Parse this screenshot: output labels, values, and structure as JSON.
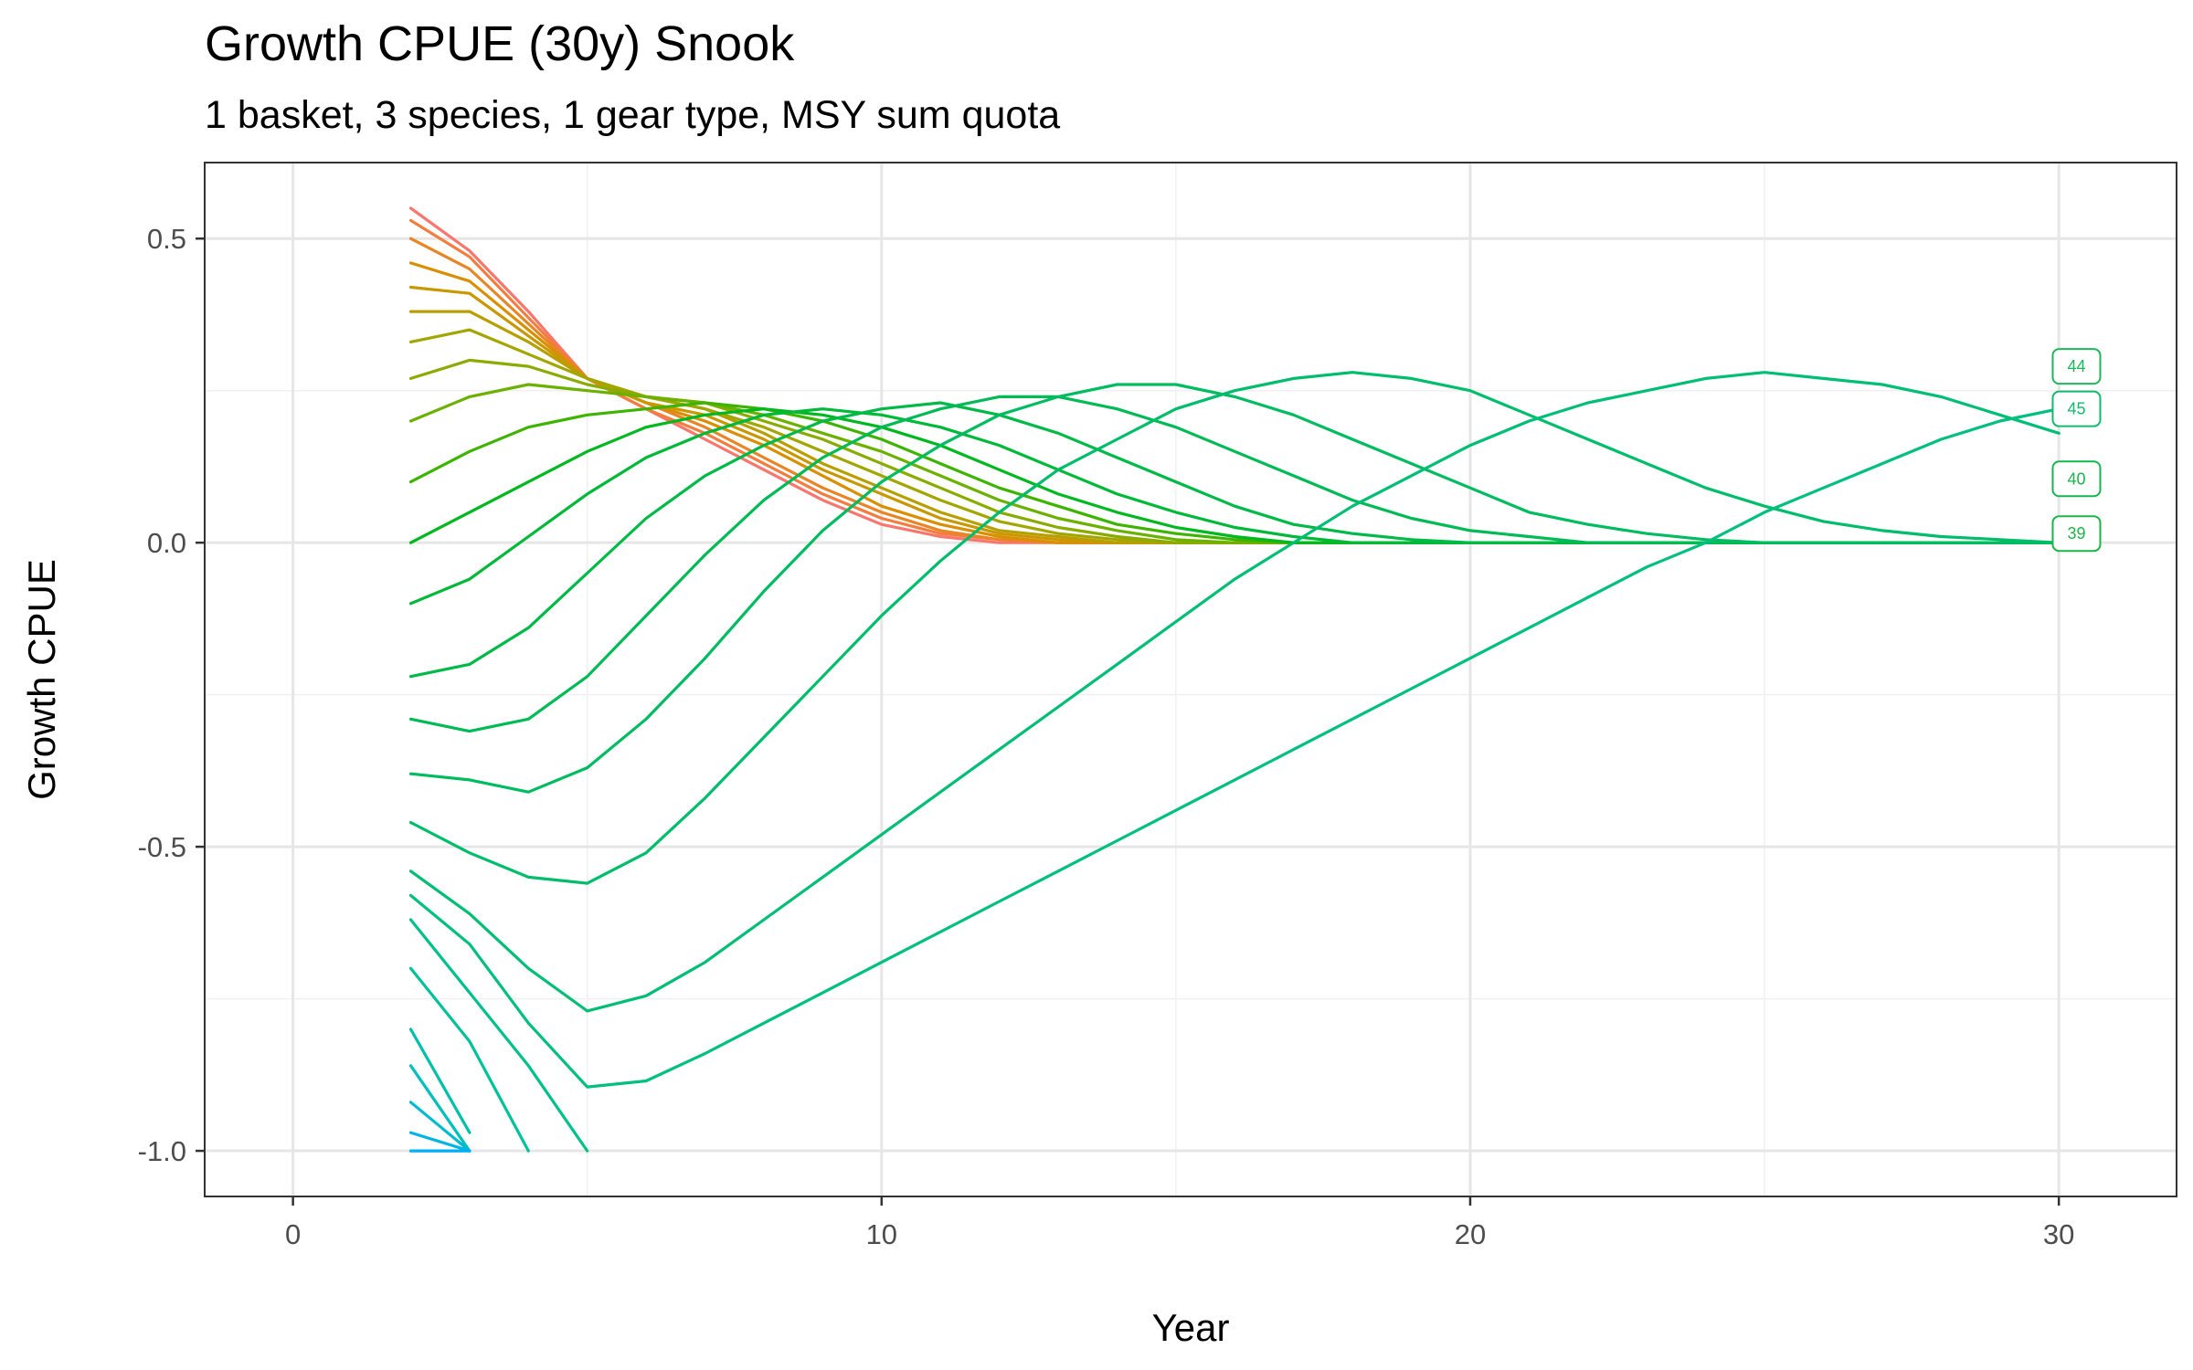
{
  "chart_data": {
    "type": "line",
    "title": "Growth CPUE (30y) Snook",
    "subtitle": "1 basket, 3 species, 1 gear type, MSY sum quota",
    "xlabel": "Year",
    "ylabel": "Growth CPUE",
    "xlim": [
      -1.5,
      32
    ],
    "ylim": [
      -1.075,
      0.625
    ],
    "x_ticks": [
      0,
      10,
      20,
      30
    ],
    "y_ticks": [
      0.5,
      0.0,
      -0.5,
      -1.0
    ],
    "x_tick_labels": [
      "0",
      "10",
      "20",
      "30"
    ],
    "y_tick_labels": [
      "0.5",
      "0.0",
      "-0.5",
      "-1.0"
    ],
    "grid": true,
    "legend": "none",
    "end_labels": [
      {
        "text": "44",
        "x": 30.3,
        "y": 0.29,
        "color": "#1db85a"
      },
      {
        "text": "45",
        "x": 30.3,
        "y": 0.22,
        "color": "#10bb6e"
      },
      {
        "text": "40",
        "x": 30.3,
        "y": 0.105,
        "color": "#17b64f"
      },
      {
        "text": "39",
        "x": 30.3,
        "y": 0.015,
        "color": "#1cb648"
      }
    ],
    "series_count": 80,
    "series_note_x_start": 2,
    "series_x": [
      2,
      3,
      4,
      5,
      6,
      7,
      8,
      9,
      10,
      11,
      12,
      13,
      14,
      15,
      16,
      17,
      18,
      19,
      20,
      21,
      22,
      23,
      24,
      25,
      26,
      27,
      28,
      29,
      30
    ],
    "series": [
      {
        "values": [
          0.55,
          0.48,
          0.38,
          0.27,
          0.22,
          0.17,
          0.12,
          0.07,
          0.03,
          0.01,
          0.0,
          0.0,
          0.0,
          0.0,
          0.0,
          0.0,
          0.0,
          0.0,
          0.0,
          0.0,
          0.0,
          0.0,
          0.0,
          0.0,
          0.0,
          0.0,
          0.0,
          0.0,
          0.0
        ],
        "color": "#f8766d"
      },
      {
        "values": [
          0.53,
          0.47,
          0.37,
          0.27,
          0.22,
          0.18,
          0.13,
          0.08,
          0.04,
          0.015,
          0.005,
          0.0,
          0.0,
          0.0,
          0.0,
          0.0,
          0.0,
          0.0,
          0.0,
          0.0,
          0.0,
          0.0,
          0.0,
          0.0,
          0.0,
          0.0,
          0.0,
          0.0,
          0.0
        ],
        "color": "#f27d3e"
      },
      {
        "values": [
          0.5,
          0.45,
          0.36,
          0.27,
          0.23,
          0.19,
          0.14,
          0.09,
          0.05,
          0.02,
          0.005,
          0.0,
          0.0,
          0.0,
          0.0,
          0.0,
          0.0,
          0.0,
          0.0,
          0.0,
          0.0,
          0.0,
          0.0,
          0.0,
          0.0,
          0.0,
          0.0,
          0.0,
          0.0
        ],
        "color": "#e88526"
      },
      {
        "values": [
          0.46,
          0.43,
          0.35,
          0.27,
          0.23,
          0.2,
          0.16,
          0.11,
          0.06,
          0.03,
          0.01,
          0.0,
          0.0,
          0.0,
          0.0,
          0.0,
          0.0,
          0.0,
          0.0,
          0.0,
          0.0,
          0.0,
          0.0,
          0.0,
          0.0,
          0.0,
          0.0,
          0.0,
          0.0
        ],
        "color": "#da8f00"
      },
      {
        "values": [
          0.42,
          0.41,
          0.34,
          0.27,
          0.23,
          0.21,
          0.17,
          0.12,
          0.08,
          0.04,
          0.015,
          0.005,
          0.0,
          0.0,
          0.0,
          0.0,
          0.0,
          0.0,
          0.0,
          0.0,
          0.0,
          0.0,
          0.0,
          0.0,
          0.0,
          0.0,
          0.0,
          0.0,
          0.0
        ],
        "color": "#c99800"
      },
      {
        "values": [
          0.38,
          0.38,
          0.33,
          0.27,
          0.24,
          0.22,
          0.18,
          0.13,
          0.09,
          0.05,
          0.02,
          0.01,
          0.0,
          0.0,
          0.0,
          0.0,
          0.0,
          0.0,
          0.0,
          0.0,
          0.0,
          0.0,
          0.0,
          0.0,
          0.0,
          0.0,
          0.0,
          0.0,
          0.0
        ],
        "color": "#b79f00"
      },
      {
        "values": [
          0.33,
          0.35,
          0.31,
          0.27,
          0.24,
          0.22,
          0.19,
          0.15,
          0.11,
          0.07,
          0.035,
          0.015,
          0.005,
          0.0,
          0.0,
          0.0,
          0.0,
          0.0,
          0.0,
          0.0,
          0.0,
          0.0,
          0.0,
          0.0,
          0.0,
          0.0,
          0.0,
          0.0,
          0.0
        ],
        "color": "#a3a500"
      },
      {
        "values": [
          0.27,
          0.3,
          0.29,
          0.26,
          0.24,
          0.23,
          0.2,
          0.17,
          0.13,
          0.09,
          0.05,
          0.025,
          0.01,
          0.0,
          0.0,
          0.0,
          0.0,
          0.0,
          0.0,
          0.0,
          0.0,
          0.0,
          0.0,
          0.0,
          0.0,
          0.0,
          0.0,
          0.0,
          0.0
        ],
        "color": "#8aab00"
      },
      {
        "values": [
          0.2,
          0.24,
          0.26,
          0.25,
          0.24,
          0.23,
          0.21,
          0.18,
          0.15,
          0.11,
          0.07,
          0.04,
          0.02,
          0.005,
          0.0,
          0.0,
          0.0,
          0.0,
          0.0,
          0.0,
          0.0,
          0.0,
          0.0,
          0.0,
          0.0,
          0.0,
          0.0,
          0.0,
          0.0
        ],
        "color": "#6bb100"
      },
      {
        "values": [
          0.1,
          0.15,
          0.19,
          0.21,
          0.22,
          0.23,
          0.22,
          0.2,
          0.17,
          0.13,
          0.09,
          0.06,
          0.03,
          0.015,
          0.005,
          0.0,
          0.0,
          0.0,
          0.0,
          0.0,
          0.0,
          0.0,
          0.0,
          0.0,
          0.0,
          0.0,
          0.0,
          0.0,
          0.0
        ],
        "color": "#3db500"
      },
      {
        "values": [
          0.0,
          0.05,
          0.1,
          0.15,
          0.19,
          0.21,
          0.22,
          0.21,
          0.19,
          0.16,
          0.12,
          0.08,
          0.05,
          0.025,
          0.01,
          0.0,
          0.0,
          0.0,
          0.0,
          0.0,
          0.0,
          0.0,
          0.0,
          0.0,
          0.0,
          0.0,
          0.0,
          0.0,
          0.0
        ],
        "color": "#00b81f"
      },
      {
        "values": [
          -0.1,
          -0.06,
          0.01,
          0.08,
          0.14,
          0.18,
          0.21,
          0.22,
          0.21,
          0.19,
          0.16,
          0.12,
          0.08,
          0.05,
          0.025,
          0.01,
          0.0,
          0.0,
          0.0,
          0.0,
          0.0,
          0.0,
          0.0,
          0.0,
          0.0,
          0.0,
          0.0,
          0.0,
          0.0
        ],
        "color": "#00b938"
      },
      {
        "values": [
          -0.22,
          -0.2,
          -0.14,
          -0.05,
          0.04,
          0.11,
          0.16,
          0.2,
          0.22,
          0.23,
          0.21,
          0.18,
          0.14,
          0.1,
          0.06,
          0.03,
          0.015,
          0.005,
          0.0,
          0.0,
          0.0,
          0.0,
          0.0,
          0.0,
          0.0,
          0.0,
          0.0,
          0.0,
          0.0
        ],
        "color": "#00ba48"
      },
      {
        "values": [
          -0.29,
          -0.31,
          -0.29,
          -0.22,
          -0.12,
          -0.02,
          0.07,
          0.14,
          0.19,
          0.22,
          0.24,
          0.24,
          0.22,
          0.19,
          0.15,
          0.11,
          0.07,
          0.04,
          0.02,
          0.01,
          0.0,
          0.0,
          0.0,
          0.0,
          0.0,
          0.0,
          0.0,
          0.0,
          0.0
        ],
        "color": "#00bb55"
      },
      {
        "values": [
          -0.38,
          -0.39,
          -0.41,
          -0.37,
          -0.29,
          -0.19,
          -0.08,
          0.02,
          0.1,
          0.16,
          0.21,
          0.24,
          0.26,
          0.26,
          0.24,
          0.21,
          0.17,
          0.13,
          0.09,
          0.05,
          0.03,
          0.015,
          0.005,
          0.0,
          0.0,
          0.0,
          0.0,
          0.0,
          0.0
        ],
        "color": "#00bc60"
      },
      {
        "values": [
          -0.46,
          -0.51,
          -0.55,
          -0.56,
          -0.51,
          -0.42,
          -0.32,
          -0.22,
          -0.12,
          -0.03,
          0.05,
          0.12,
          0.17,
          0.22,
          0.25,
          0.27,
          0.28,
          0.27,
          0.25,
          0.21,
          0.17,
          0.13,
          0.09,
          0.06,
          0.035,
          0.02,
          0.01,
          0.005,
          0.0
        ],
        "color": "#00bd6b"
      },
      {
        "values": [
          -0.54,
          -0.61,
          -0.7,
          -0.77,
          -0.745,
          -0.69,
          -0.62,
          -0.55,
          -0.48,
          -0.41,
          -0.34,
          -0.27,
          -0.2,
          -0.13,
          -0.06,
          0.0,
          0.06,
          0.11,
          0.16,
          0.2,
          0.23,
          0.25,
          0.27,
          0.28,
          0.27,
          0.26,
          0.24,
          0.21,
          0.18
        ],
        "color": "#00be75"
      },
      {
        "values": [
          -0.58,
          -0.66,
          -0.79,
          -0.895,
          -0.885,
          -0.84,
          -0.79,
          -0.74,
          -0.69,
          -0.64,
          -0.59,
          -0.54,
          -0.49,
          -0.44,
          -0.39,
          -0.34,
          -0.29,
          -0.24,
          -0.19,
          -0.14,
          -0.09,
          -0.04,
          0.0,
          0.05,
          0.09,
          0.13,
          0.17,
          0.2,
          0.22
        ],
        "color": "#00bf7f"
      },
      {
        "values": [
          -0.62,
          -0.74,
          -0.86,
          -1.0
        ],
        "color": "#00c08b"
      },
      {
        "values": [
          -0.7,
          -0.82,
          -1.0
        ],
        "color": "#00c19a"
      },
      {
        "values": [
          -0.8,
          -0.97
        ],
        "color": "#00c0aa"
      },
      {
        "values": [
          -0.86,
          -1.0
        ],
        "color": "#00bfbc"
      },
      {
        "values": [
          -0.92,
          -1.0
        ],
        "color": "#00bbcf"
      },
      {
        "values": [
          -0.97,
          -1.0
        ],
        "color": "#00b5e3"
      },
      {
        "values": [
          -1.0,
          -1.0
        ],
        "color": "#00aef6"
      }
    ]
  }
}
